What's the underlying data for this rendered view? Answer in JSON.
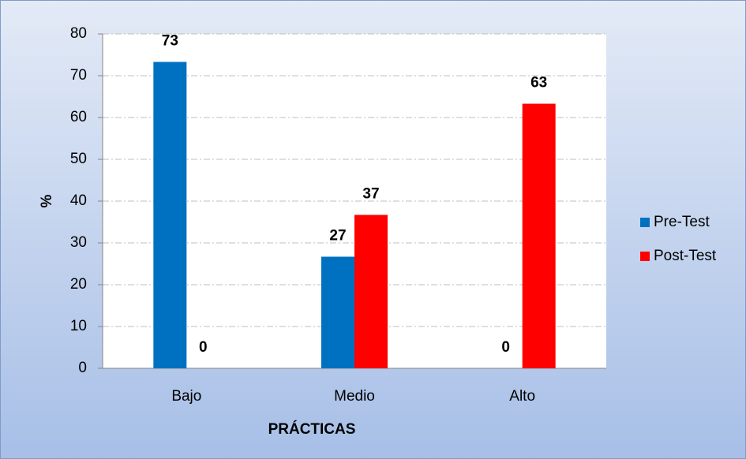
{
  "chart_data": {
    "type": "bar",
    "x_label": "PRÁCTICAS",
    "y_label": "%",
    "categories": [
      "Bajo",
      "Medio",
      "Alto"
    ],
    "series": [
      {
        "name": "Pre-Test",
        "color": "#0070c0",
        "values": [
          73.3,
          26.7,
          0
        ],
        "value_labels": [
          "73",
          "27",
          "0"
        ]
      },
      {
        "name": "Post-Test",
        "color": "#ff0000",
        "values": [
          0,
          36.7,
          63.3
        ],
        "value_labels": [
          "0",
          "37",
          "63"
        ]
      }
    ],
    "ylim": [
      0,
      80
    ],
    "yticks": [
      0,
      10,
      20,
      30,
      40,
      50,
      60,
      70,
      80
    ],
    "grid": true,
    "legend": "right"
  }
}
